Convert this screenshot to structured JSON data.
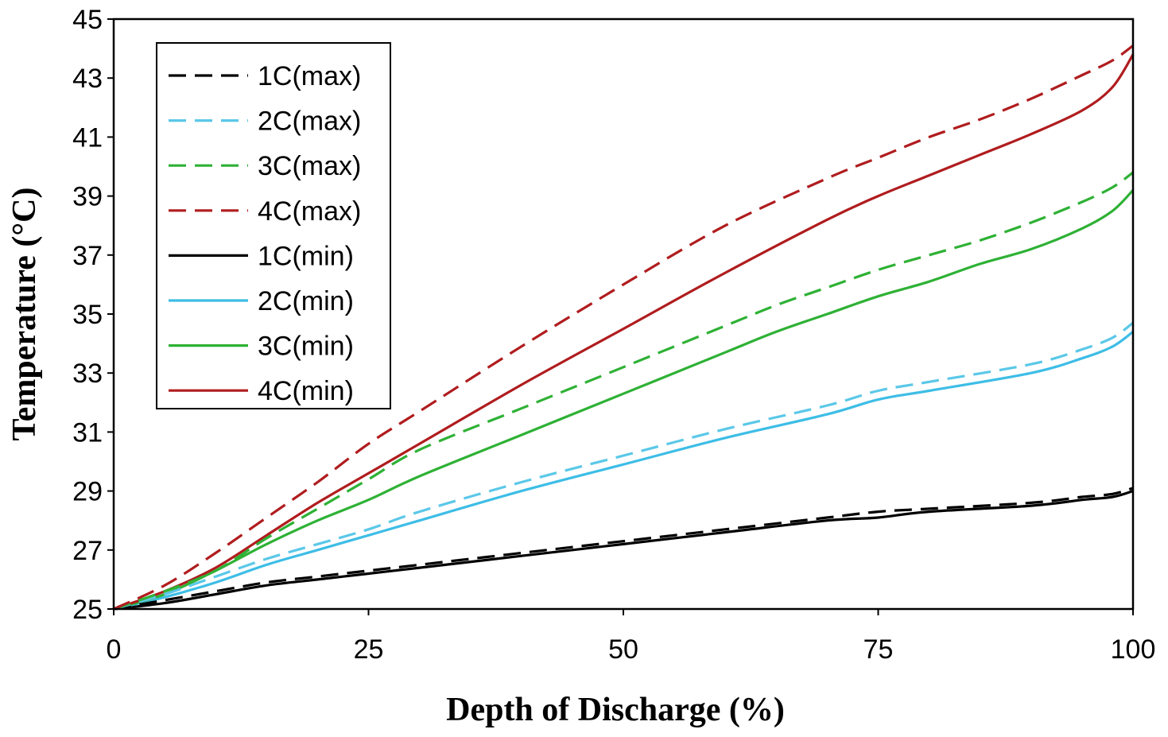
{
  "chart_data": {
    "type": "line",
    "title": "",
    "xlabel": "Depth of Discharge (%)",
    "ylabel": "Temperature (°C)",
    "xlim": [
      0,
      100
    ],
    "ylim": [
      25,
      45
    ],
    "xticks": [
      0,
      25,
      50,
      75,
      100
    ],
    "yticks": [
      25,
      27,
      29,
      31,
      33,
      35,
      37,
      39,
      41,
      43,
      45
    ],
    "grid": false,
    "legend_position": "top-left",
    "series": [
      {
        "name": "1C(max)",
        "color": "#000000",
        "dash": "dashed",
        "x": [
          0,
          5,
          10,
          15,
          20,
          25,
          30,
          40,
          50,
          60,
          70,
          75,
          80,
          90,
          95,
          98,
          100
        ],
        "y": [
          25.0,
          25.3,
          25.6,
          25.9,
          26.1,
          26.3,
          26.5,
          26.9,
          27.3,
          27.7,
          28.1,
          28.3,
          28.4,
          28.6,
          28.8,
          28.9,
          29.1
        ]
      },
      {
        "name": "2C(max)",
        "color": "#5bc8e8",
        "dash": "dashed",
        "x": [
          0,
          5,
          10,
          15,
          20,
          25,
          30,
          40,
          50,
          60,
          70,
          75,
          80,
          90,
          95,
          98,
          100
        ],
        "y": [
          25.0,
          25.5,
          26.1,
          26.7,
          27.2,
          27.7,
          28.3,
          29.3,
          30.2,
          31.1,
          31.9,
          32.4,
          32.7,
          33.3,
          33.8,
          34.2,
          34.7
        ]
      },
      {
        "name": "3C(max)",
        "color": "#2eb135",
        "dash": "dashed",
        "x": [
          0,
          5,
          10,
          15,
          20,
          25,
          30,
          40,
          50,
          60,
          65,
          70,
          75,
          80,
          85,
          90,
          95,
          98,
          100
        ],
        "y": [
          25.0,
          25.6,
          26.3,
          27.4,
          28.4,
          29.4,
          30.4,
          31.8,
          33.2,
          34.6,
          35.3,
          35.9,
          36.5,
          37.0,
          37.5,
          38.1,
          38.8,
          39.3,
          39.8
        ]
      },
      {
        "name": "4C(max)",
        "color": "#b01c1e",
        "dash": "dashed",
        "x": [
          0,
          5,
          10,
          15,
          20,
          25,
          30,
          40,
          50,
          60,
          70,
          75,
          80,
          85,
          90,
          95,
          98,
          100
        ],
        "y": [
          25.0,
          25.8,
          26.9,
          28.1,
          29.3,
          30.6,
          31.7,
          33.9,
          36.0,
          38.0,
          39.6,
          40.3,
          41.0,
          41.6,
          42.3,
          43.1,
          43.6,
          44.1
        ]
      },
      {
        "name": "1C(min)",
        "color": "#000000",
        "dash": "solid",
        "x": [
          0,
          5,
          10,
          15,
          20,
          25,
          30,
          40,
          50,
          60,
          70,
          75,
          80,
          90,
          95,
          98,
          100
        ],
        "y": [
          25.0,
          25.2,
          25.5,
          25.8,
          26.0,
          26.2,
          26.4,
          26.8,
          27.2,
          27.6,
          28.0,
          28.1,
          28.3,
          28.5,
          28.7,
          28.8,
          29.0
        ]
      },
      {
        "name": "2C(min)",
        "color": "#3dbde6",
        "dash": "solid",
        "x": [
          0,
          5,
          10,
          15,
          20,
          25,
          30,
          40,
          50,
          60,
          70,
          75,
          80,
          90,
          95,
          98,
          100
        ],
        "y": [
          25.0,
          25.4,
          25.9,
          26.5,
          27.0,
          27.5,
          28.0,
          29.0,
          29.9,
          30.8,
          31.6,
          32.1,
          32.4,
          33.0,
          33.5,
          33.9,
          34.4
        ]
      },
      {
        "name": "3C(min)",
        "color": "#2eb135",
        "dash": "solid",
        "x": [
          0,
          5,
          10,
          15,
          20,
          25,
          30,
          40,
          50,
          60,
          65,
          70,
          75,
          80,
          85,
          90,
          95,
          98,
          100
        ],
        "y": [
          25.0,
          25.5,
          26.3,
          27.2,
          28.0,
          28.7,
          29.5,
          30.9,
          32.3,
          33.7,
          34.4,
          35.0,
          35.6,
          36.1,
          36.7,
          37.2,
          37.9,
          38.5,
          39.2
        ]
      },
      {
        "name": "4C(min)",
        "color": "#b01c1e",
        "dash": "solid",
        "x": [
          0,
          5,
          10,
          15,
          20,
          25,
          30,
          40,
          50,
          60,
          70,
          75,
          80,
          85,
          90,
          95,
          98,
          100
        ],
        "y": [
          25.0,
          25.6,
          26.4,
          27.5,
          28.6,
          29.6,
          30.6,
          32.6,
          34.5,
          36.4,
          38.2,
          39.0,
          39.7,
          40.4,
          41.1,
          41.9,
          42.7,
          43.8
        ]
      }
    ]
  }
}
